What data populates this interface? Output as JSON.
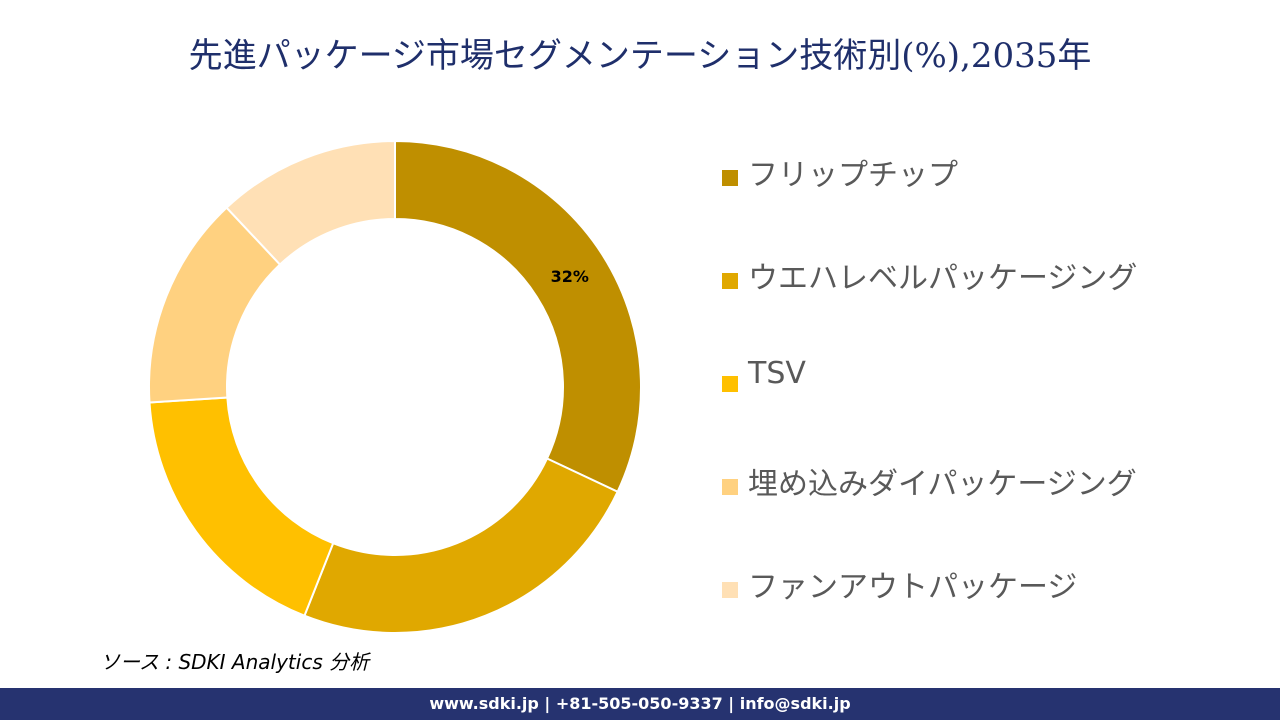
{
  "chart_data": {
    "type": "pie",
    "title": "先進パッケージ市場セグメンテーション技術別(%),2035年",
    "categories": [
      "フリップチップ",
      "ウエハレベルパッケージング",
      "TSV",
      "埋め込みダイパッケージング",
      "ファンアウトパッケージ"
    ],
    "values": [
      32,
      24,
      18,
      14,
      12
    ],
    "colors": [
      "#BF8F00",
      "#E0A800",
      "#FFC000",
      "#FFD180",
      "#FFE0B5"
    ],
    "data_labels": [
      "32%",
      "",
      "",
      "",
      ""
    ],
    "donut": true,
    "legend_position": "right"
  },
  "source": "ソース : SDKI Analytics 分析",
  "footer": "www.sdki.jp | +81-505-050-9337 | info@sdki.jp"
}
